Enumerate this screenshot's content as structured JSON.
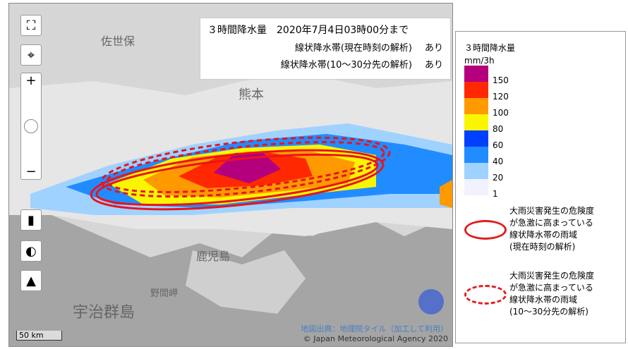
{
  "info": {
    "title": "３時間降水量　2020年7月4日03時00分まで",
    "rows": [
      {
        "label": "線状降水帯(現在時刻の解析)",
        "value": "あり"
      },
      {
        "label": "線状降水帯(10～30分先の解析)",
        "value": "あり"
      }
    ]
  },
  "legend": {
    "title": "３時間降水量",
    "unit": "mm/3h",
    "levels": [
      {
        "label": "150",
        "color": "#b4007d"
      },
      {
        "label": "120",
        "color": "#ff2800"
      },
      {
        "label": "100",
        "color": "#ff9900"
      },
      {
        "label": "80",
        "color": "#faf500"
      },
      {
        "label": "60",
        "color": "#0041ff"
      },
      {
        "label": "40",
        "color": "#218cff"
      },
      {
        "label": "20",
        "color": "#a0d2ff"
      },
      {
        "label": "1",
        "color": "#f2f2ff"
      }
    ],
    "items": [
      {
        "style": "solid",
        "lines": [
          "大雨災害発生の危険度",
          "が急激に高まっている",
          "線状降水帯の雨域",
          "(現在時刻の解析)"
        ]
      },
      {
        "style": "dashed",
        "lines": [
          "大雨災害発生の危険度",
          "が急激に高まっている",
          "線状降水帯の雨域",
          "(10～30分先の解析)"
        ]
      }
    ]
  },
  "map": {
    "places": [
      "佐世保",
      "熊本",
      "鹿児島",
      "野間岬",
      "宇治群島"
    ],
    "scale": "50 km",
    "attribution": [
      "地図出典：地理院タイル（加工して利用）",
      "© Japan Meteorological Agency 2020"
    ]
  }
}
